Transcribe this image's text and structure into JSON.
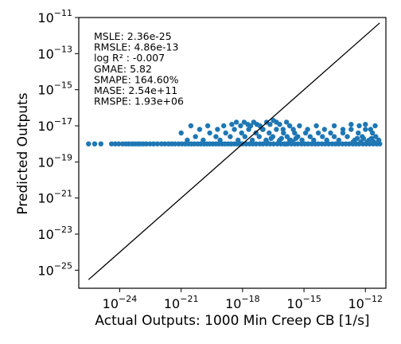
{
  "chart_data": {
    "type": "scatter",
    "title": "",
    "xlabel": "Actual Outputs: 1000 Min Creep CB [1/s]",
    "ylabel": "Predicted Outputs",
    "x_scale": "log",
    "y_scale": "log",
    "xlim": [
      1e-26,
      1e-11
    ],
    "ylim": [
      1e-26,
      1e-11
    ],
    "x_ticks": [
      {
        "label_base": "10",
        "label_exp": "−24",
        "value": 1e-24
      },
      {
        "label_base": "10",
        "label_exp": "−21",
        "value": 1e-21
      },
      {
        "label_base": "10",
        "label_exp": "−18",
        "value": 1e-18
      },
      {
        "label_base": "10",
        "label_exp": "−15",
        "value": 1e-15
      },
      {
        "label_base": "10",
        "label_exp": "−12",
        "value": 1e-12
      }
    ],
    "y_ticks": [
      {
        "label_base": "10",
        "label_exp": "−11",
        "value": 1e-11
      },
      {
        "label_base": "10",
        "label_exp": "−13",
        "value": 1e-13
      },
      {
        "label_base": "10",
        "label_exp": "−15",
        "value": 1e-15
      },
      {
        "label_base": "10",
        "label_exp": "−17",
        "value": 1e-17
      },
      {
        "label_base": "10",
        "label_exp": "−19",
        "value": 1e-19
      },
      {
        "label_base": "10",
        "label_exp": "−21",
        "value": 1e-21
      },
      {
        "label_base": "10",
        "label_exp": "−23",
        "value": 1e-23
      },
      {
        "label_base": "10",
        "label_exp": "−25",
        "value": 1e-25
      }
    ],
    "metrics": [
      "MSLE: 2.36e-25",
      "RMSLE: 4.86e-13",
      "log R² : -0.007",
      "GMAE: 5.82",
      "SMAPE: 164.60%",
      "MASE: 2.54e+11",
      "RMSPE: 1.93e+06"
    ],
    "reference_line": {
      "x": [
        3e-26,
        5e-12
      ],
      "y": [
        3e-26,
        5e-12
      ]
    },
    "point_color": "#1f77b4",
    "line_color": "#000000",
    "points": [
      [
        3e-26,
        1e-18
      ],
      [
        6e-26,
        1e-18
      ],
      [
        1.2e-25,
        1e-18
      ],
      [
        4e-25,
        1e-18
      ],
      [
        6e-25,
        1e-18
      ],
      [
        9e-25,
        1e-18
      ],
      [
        1.4e-24,
        1e-18
      ],
      [
        2e-24,
        1e-18
      ],
      [
        2.8e-24,
        1e-18
      ],
      [
        4e-24,
        1e-18
      ],
      [
        5.5e-24,
        1e-18
      ],
      [
        7.5e-24,
        1e-18
      ],
      [
        1e-23,
        1e-18
      ],
      [
        1.4e-23,
        1e-18
      ],
      [
        2e-23,
        1e-18
      ],
      [
        3e-23,
        1e-18
      ],
      [
        4.5e-23,
        1e-18
      ],
      [
        7e-23,
        1e-18
      ],
      [
        1.1e-22,
        1e-18
      ],
      [
        1.6e-22,
        1e-18
      ],
      [
        2.4e-22,
        1e-18
      ],
      [
        3.5e-22,
        1e-18
      ],
      [
        5e-22,
        1e-18
      ],
      [
        7.5e-22,
        1e-18
      ],
      [
        1.1e-21,
        1e-18
      ],
      [
        1.6e-21,
        1e-18
      ],
      [
        2.3e-21,
        1e-18
      ],
      [
        3.2e-21,
        1e-18
      ],
      [
        4.5e-21,
        1e-18
      ],
      [
        6.5e-21,
        1e-18
      ],
      [
        9e-21,
        1e-18
      ],
      [
        1.3e-20,
        1e-18
      ],
      [
        1.8e-20,
        1e-18
      ],
      [
        2.5e-20,
        1e-18
      ],
      [
        3.5e-20,
        1e-18
      ],
      [
        5e-20,
        1e-18
      ],
      [
        7e-20,
        1e-18
      ],
      [
        1e-19,
        1e-18
      ],
      [
        1.4e-19,
        1e-18
      ],
      [
        2e-19,
        1e-18
      ],
      [
        2.8e-19,
        1e-18
      ],
      [
        4e-19,
        1e-18
      ],
      [
        5.5e-19,
        1e-18
      ],
      [
        7.5e-19,
        1e-18
      ],
      [
        1e-18,
        1e-18
      ],
      [
        1.5e-18,
        1e-18
      ],
      [
        2.2e-18,
        1e-18
      ],
      [
        3.2e-18,
        1e-18
      ],
      [
        4.6e-18,
        1e-18
      ],
      [
        7e-18,
        1e-18
      ],
      [
        1e-17,
        1e-18
      ],
      [
        1.5e-17,
        1e-18
      ],
      [
        2.2e-17,
        1e-18
      ],
      [
        3.3e-17,
        1e-18
      ],
      [
        5e-17,
        1e-18
      ],
      [
        7.5e-17,
        1e-18
      ],
      [
        1.1e-16,
        1e-18
      ],
      [
        1.6e-16,
        1e-18
      ],
      [
        2.4e-16,
        1e-18
      ],
      [
        3.5e-16,
        1e-18
      ],
      [
        5e-16,
        1e-18
      ],
      [
        7.5e-16,
        1e-18
      ],
      [
        1.1e-15,
        1e-18
      ],
      [
        1.6e-15,
        1e-18
      ],
      [
        2.4e-15,
        1e-18
      ],
      [
        3.5e-15,
        1e-18
      ],
      [
        5e-15,
        1e-18
      ],
      [
        7.5e-15,
        1e-18
      ],
      [
        1.1e-14,
        1e-18
      ],
      [
        1.6e-14,
        1e-18
      ],
      [
        2.4e-14,
        1e-18
      ],
      [
        3.5e-14,
        1e-18
      ],
      [
        5e-14,
        1e-18
      ],
      [
        7.5e-14,
        1e-18
      ],
      [
        1.1e-13,
        1e-18
      ],
      [
        1.6e-13,
        1e-18
      ],
      [
        2.4e-13,
        1e-18
      ],
      [
        3.5e-13,
        1e-18
      ],
      [
        5e-13,
        1e-18
      ],
      [
        7.5e-13,
        1e-18
      ],
      [
        1.1e-12,
        1e-18
      ],
      [
        1.6e-12,
        1e-18
      ],
      [
        2.4e-12,
        1e-18
      ],
      [
        3.5e-12,
        1e-18
      ],
      [
        5e-12,
        1e-18
      ],
      [
        2e-21,
        1.6e-18
      ],
      [
        5e-21,
        2.5e-18
      ],
      [
        1.2e-20,
        1.6e-18
      ],
      [
        2.5e-20,
        4e-18
      ],
      [
        5e-20,
        2.5e-18
      ],
      [
        8e-20,
        1.6e-18
      ],
      [
        1.5e-19,
        4e-18
      ],
      [
        2.5e-19,
        2.5e-18
      ],
      [
        4e-19,
        6.3e-18
      ],
      [
        6e-19,
        1.6e-18
      ],
      [
        9e-19,
        4e-18
      ],
      [
        1.3e-18,
        2.5e-18
      ],
      [
        2e-18,
        6.3e-18
      ],
      [
        3e-18,
        1.6e-18
      ],
      [
        4.5e-18,
        4e-18
      ],
      [
        6.5e-18,
        2.5e-18
      ],
      [
        9.5e-18,
        6.3e-18
      ],
      [
        1.4e-17,
        1.6e-18
      ],
      [
        2e-17,
        4e-18
      ],
      [
        3e-17,
        2.5e-18
      ],
      [
        4.5e-17,
        6.3e-18
      ],
      [
        6.5e-17,
        1.6e-18
      ],
      [
        1e-16,
        4e-18
      ],
      [
        1.5e-16,
        2.5e-18
      ],
      [
        2.2e-16,
        1.6e-18
      ],
      [
        3.5e-16,
        4e-18
      ],
      [
        5e-16,
        2.5e-18
      ],
      [
        8e-16,
        1.6e-18
      ],
      [
        1.2e-15,
        4e-18
      ],
      [
        2e-15,
        2.5e-18
      ],
      [
        3e-15,
        1.6e-18
      ],
      [
        5e-15,
        4e-18
      ],
      [
        8e-15,
        2.5e-18
      ],
      [
        1.3e-14,
        1.6e-18
      ],
      [
        2e-14,
        4e-18
      ],
      [
        3e-14,
        2.5e-18
      ],
      [
        5e-14,
        1.6e-18
      ],
      [
        8e-14,
        4e-18
      ],
      [
        1.3e-13,
        2.5e-18
      ],
      [
        2e-13,
        6.3e-18
      ],
      [
        3e-13,
        1.6e-18
      ],
      [
        4.5e-13,
        4e-18
      ],
      [
        7e-13,
        2.5e-18
      ],
      [
        1e-12,
        6.3e-18
      ],
      [
        1.5e-12,
        1.6e-18
      ],
      [
        2.2e-12,
        4e-18
      ],
      [
        3.2e-12,
        2.5e-18
      ],
      [
        4.5e-12,
        1.6e-18
      ],
      [
        1e-21,
        4e-18
      ],
      [
        3e-21,
        1e-17
      ],
      [
        8e-21,
        6.3e-18
      ],
      [
        2e-20,
        1e-17
      ],
      [
        6e-20,
        6.3e-18
      ],
      [
        1.2e-19,
        1e-17
      ],
      [
        3e-19,
        1.2e-17
      ],
      [
        5e-19,
        1.6e-17
      ],
      [
        8e-19,
        1e-17
      ],
      [
        1.2e-18,
        1.6e-17
      ],
      [
        1.8e-18,
        1.2e-17
      ],
      [
        2.5e-18,
        1e-17
      ],
      [
        3.5e-18,
        1.6e-17
      ],
      [
        5e-18,
        1.2e-17
      ],
      [
        7e-18,
        1e-17
      ],
      [
        1e-17,
        6.3e-18
      ],
      [
        1.5e-17,
        1.6e-17
      ],
      [
        2.2e-17,
        1.2e-17
      ],
      [
        3.2e-17,
        2e-17
      ],
      [
        4.5e-17,
        1.6e-17
      ],
      [
        6.5e-17,
        1.2e-17
      ],
      [
        9.5e-17,
        6.3e-18
      ],
      [
        1.4e-16,
        1.6e-17
      ],
      [
        2e-16,
        1e-17
      ],
      [
        3e-16,
        6.3e-18
      ],
      [
        6e-16,
        1e-17
      ],
      [
        1.5e-15,
        6.3e-18
      ],
      [
        4e-15,
        1e-17
      ],
      [
        1e-14,
        6.3e-18
      ],
      [
        3e-14,
        1e-17
      ],
      [
        8e-14,
        6.3e-18
      ],
      [
        2e-13,
        1.2e-17
      ],
      [
        5e-13,
        1e-17
      ],
      [
        1e-12,
        1.2e-17
      ],
      [
        1.8e-12,
        6.3e-18
      ],
      [
        3e-12,
        1e-17
      ],
      [
        1.2e-16,
        1e-18
      ],
      [
        2e-16,
        1.6e-18
      ],
      [
        2.8e-16,
        1.3e-18
      ],
      [
        4e-16,
        2e-18
      ],
      [
        1.5e-17,
        1.3e-18
      ],
      [
        2.5e-17,
        2e-18
      ],
      [
        6e-17,
        1.3e-18
      ],
      [
        8e-17,
        2e-18
      ],
      [
        2.5e-13,
        1.3e-18
      ],
      [
        4e-13,
        2e-18
      ],
      [
        6e-13,
        1.3e-18
      ],
      [
        8e-13,
        2e-18
      ],
      [
        1.2e-12,
        1.3e-18
      ],
      [
        2e-12,
        2e-18
      ],
      [
        2.6e-12,
        1.3e-18
      ]
    ]
  }
}
